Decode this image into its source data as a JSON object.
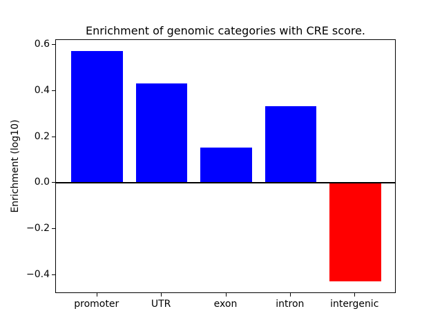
{
  "figure": {
    "background": "#ffffff"
  },
  "chart_data": {
    "type": "bar",
    "title": "Enrichment of genomic categories with CRE score.",
    "ylabel": "Enrichment (log10)",
    "xlabel": "",
    "categories": [
      "promoter",
      "UTR",
      "exon",
      "intron",
      "intergenic"
    ],
    "values": [
      0.57,
      0.43,
      0.15,
      0.33,
      -0.43
    ],
    "bar_colors": [
      "#0000ff",
      "#0000ff",
      "#0000ff",
      "#0000ff",
      "#ff0000"
    ],
    "positive_color": "#0000ff",
    "negative_color": "#ff0000",
    "ylim": [
      -0.48,
      0.62
    ],
    "xlim": [
      -0.64,
      4.64
    ],
    "yticks": [
      0.6,
      0.4,
      0.2,
      0.0,
      -0.2,
      -0.4
    ],
    "ytick_labels": [
      "0.6",
      "0.4",
      "0.2",
      "0.0",
      "−0.2",
      "−0.4"
    ],
    "bar_width_units": 0.8,
    "zero_line": true,
    "grid": false,
    "legend": "none",
    "axis_color": "#000000",
    "text_color": "#000000"
  }
}
